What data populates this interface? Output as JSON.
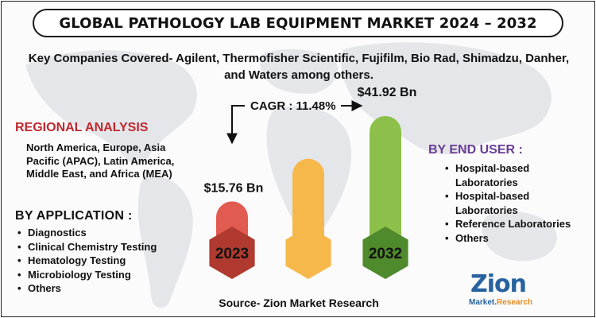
{
  "title": "GLOBAL PATHOLOGY LAB EQUIPMENT MARKET 2024 – 2032",
  "subtitle": "Key Companies Covered- Agilent, Thermofisher Scientific, Fujifilm, Bio Rad, Shimadzu, Danher, and Waters among others.",
  "regional": {
    "heading": "REGIONAL ANALYSIS",
    "text": "North America, Europe, Asia Pacific (APAC), Latin America, Middle East, and Africa (MEA)"
  },
  "application": {
    "heading": "BY APPLICATION :",
    "items": [
      "Diagnostics",
      "Clinical Chemistry Testing",
      "Hematology Testing",
      "Microbiology Testing",
      "Others"
    ]
  },
  "end_user": {
    "heading": "BY END USER :",
    "items": [
      "Hospital-based Laboratories",
      "Hospital-based Laboratories",
      "Reference Laboratories",
      "Others"
    ]
  },
  "source": "Source- Zion Market Research",
  "logo": {
    "main": "Zion",
    "sub_left": "Market.",
    "sub_right": "Research"
  },
  "colors": {
    "regional_heading": "#c0282e",
    "end_user_heading": "#6a3d96",
    "bar_2023": "#e25b50",
    "bar_2023_hex": "#b03a2f",
    "bar_mid": "#f7b84b",
    "bar_2032": "#8cc04a",
    "bar_2032_hex": "#4f8a2c"
  },
  "chart_data": {
    "type": "bar",
    "categories": [
      "2023",
      "",
      "2032"
    ],
    "values": [
      15.76,
      null,
      41.92
    ],
    "value_labels": [
      "$15.76 Bn",
      "",
      "$41.92 Bn"
    ],
    "cagr_label": "CAGR : 11.48%",
    "unit": "Bn"
  }
}
